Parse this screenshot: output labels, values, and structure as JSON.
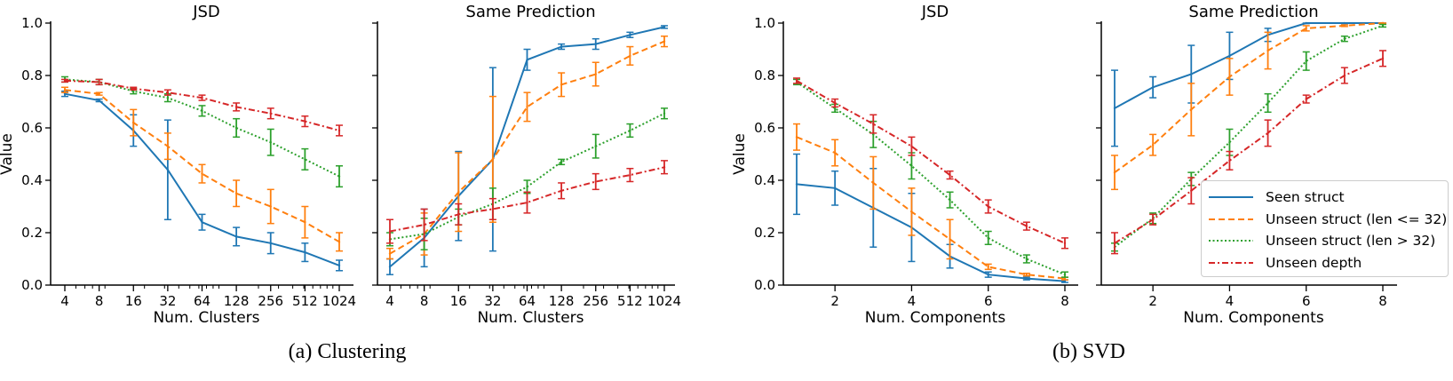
{
  "captions": {
    "a": "(a) Clustering",
    "b": "(b) SVD"
  },
  "colors": {
    "seen": "#1f77b4",
    "unseen_le": "#ff7f0e",
    "unseen_gt": "#2ca02c",
    "depth": "#d62728"
  },
  "legend": [
    {
      "label": "Seen struct",
      "color": "#1f77b4",
      "style": "solid"
    },
    {
      "label": "Unseen struct (len <= 32)",
      "color": "#ff7f0e",
      "style": "dashed"
    },
    {
      "label": "Unseen struct (len > 32)",
      "color": "#2ca02c",
      "style": "dotted"
    },
    {
      "label": "Unseen depth",
      "color": "#d62728",
      "style": "dashdot"
    }
  ],
  "chart_data": [
    {
      "type": "line",
      "title": "JSD",
      "xlabel": "Num. Clusters",
      "ylabel": "Value",
      "xscale": "log2",
      "ylim": [
        0,
        1
      ],
      "x": [
        4,
        8,
        16,
        32,
        64,
        128,
        256,
        512,
        1024
      ],
      "xticks": [
        "4",
        "8",
        "16",
        "32",
        "64",
        "128",
        "256",
        "512",
        "1024"
      ],
      "yticks": [
        "0.0",
        "0.2",
        "0.4",
        "0.6",
        "0.8",
        "1.0"
      ],
      "series": [
        {
          "name": "Seen struct",
          "style": "solid",
          "color": "#1f77b4",
          "values": [
            0.73,
            0.705,
            0.59,
            0.44,
            0.24,
            0.185,
            0.16,
            0.125,
            0.075
          ],
          "errors": [
            0.01,
            0.005,
            0.06,
            0.19,
            0.03,
            0.035,
            0.04,
            0.035,
            0.02
          ]
        },
        {
          "name": "Unseen struct (len <= 32)",
          "style": "dashed",
          "color": "#ff7f0e",
          "values": [
            0.745,
            0.73,
            0.62,
            0.53,
            0.425,
            0.35,
            0.3,
            0.24,
            0.165
          ],
          "errors": [
            0.01,
            0.005,
            0.05,
            0.05,
            0.035,
            0.05,
            0.065,
            0.06,
            0.035
          ]
        },
        {
          "name": "Unseen struct (len > 32)",
          "style": "dotted",
          "color": "#2ca02c",
          "values": [
            0.785,
            0.775,
            0.74,
            0.715,
            0.665,
            0.6,
            0.545,
            0.48,
            0.415
          ],
          "errors": [
            0.01,
            0.01,
            0.01,
            0.015,
            0.02,
            0.035,
            0.05,
            0.04,
            0.04
          ]
        },
        {
          "name": "Unseen depth",
          "style": "dashdot",
          "color": "#d62728",
          "values": [
            0.78,
            0.775,
            0.75,
            0.735,
            0.715,
            0.68,
            0.655,
            0.625,
            0.59
          ],
          "errors": [
            0.005,
            0.01,
            0.005,
            0.01,
            0.01,
            0.015,
            0.02,
            0.02,
            0.02
          ]
        }
      ]
    },
    {
      "type": "line",
      "title": "Same Prediction",
      "xlabel": "Num. Clusters",
      "ylabel": "",
      "xscale": "log2",
      "ylim": [
        0,
        1
      ],
      "x": [
        4,
        8,
        16,
        32,
        64,
        128,
        256,
        512,
        1024
      ],
      "xticks": [
        "4",
        "8",
        "16",
        "32",
        "64",
        "128",
        "256",
        "512",
        "1024"
      ],
      "yticks": [
        "",
        "",
        "",
        "",
        "",
        ""
      ],
      "series": [
        {
          "name": "Seen struct",
          "style": "solid",
          "color": "#1f77b4",
          "values": [
            0.07,
            0.18,
            0.34,
            0.48,
            0.86,
            0.91,
            0.92,
            0.955,
            0.985
          ],
          "errors": [
            0.03,
            0.11,
            0.17,
            0.35,
            0.04,
            0.01,
            0.02,
            0.01,
            0.005
          ]
        },
        {
          "name": "Unseen struct (len <= 32)",
          "style": "dashed",
          "color": "#ff7f0e",
          "values": [
            0.12,
            0.195,
            0.355,
            0.48,
            0.68,
            0.765,
            0.805,
            0.875,
            0.93
          ],
          "errors": [
            0.02,
            0.08,
            0.15,
            0.24,
            0.055,
            0.045,
            0.045,
            0.035,
            0.02
          ]
        },
        {
          "name": "Unseen struct (len > 32)",
          "style": "dotted",
          "color": "#2ca02c",
          "values": [
            0.175,
            0.195,
            0.26,
            0.31,
            0.375,
            0.47,
            0.53,
            0.59,
            0.655
          ],
          "errors": [
            0.025,
            0.06,
            0.03,
            0.06,
            0.025,
            0.01,
            0.045,
            0.025,
            0.02
          ]
        },
        {
          "name": "Unseen depth",
          "style": "dashdot",
          "color": "#d62728",
          "values": [
            0.205,
            0.23,
            0.27,
            0.29,
            0.315,
            0.36,
            0.395,
            0.42,
            0.45
          ],
          "errors": [
            0.045,
            0.06,
            0.04,
            0.04,
            0.04,
            0.03,
            0.03,
            0.025,
            0.025
          ]
        }
      ]
    },
    {
      "type": "line",
      "title": "JSD",
      "xlabel": "Num. Components",
      "ylabel": "Value",
      "xscale": "linear",
      "ylim": [
        0,
        1
      ],
      "xlim": [
        1,
        8
      ],
      "x": [
        1,
        2,
        3,
        4,
        5,
        6,
        7,
        8
      ],
      "xtick_values": [
        2,
        4,
        6,
        8
      ],
      "xticks": [
        "2",
        "4",
        "6",
        "8"
      ],
      "yticks": [
        "0.0",
        "0.2",
        "0.4",
        "0.6",
        "0.8",
        "1.0"
      ],
      "series": [
        {
          "name": "Seen struct",
          "style": "solid",
          "color": "#1f77b4",
          "values": [
            0.385,
            0.37,
            0.295,
            0.22,
            0.11,
            0.04,
            0.025,
            0.015
          ],
          "errors": [
            0.115,
            0.065,
            0.15,
            0.13,
            0.045,
            0.01,
            0.005,
            0.005
          ]
        },
        {
          "name": "Unseen struct (len <= 32)",
          "style": "dashed",
          "color": "#ff7f0e",
          "values": [
            0.565,
            0.505,
            0.39,
            0.28,
            0.175,
            0.07,
            0.04,
            0.025
          ],
          "errors": [
            0.05,
            0.05,
            0.1,
            0.09,
            0.075,
            0.01,
            0.005,
            0.005
          ]
        },
        {
          "name": "Unseen struct (len > 32)",
          "style": "dotted",
          "color": "#2ca02c",
          "values": [
            0.775,
            0.675,
            0.575,
            0.455,
            0.325,
            0.18,
            0.1,
            0.04
          ],
          "errors": [
            0.01,
            0.015,
            0.05,
            0.05,
            0.03,
            0.025,
            0.015,
            0.01
          ]
        },
        {
          "name": "Unseen depth",
          "style": "dashdot",
          "color": "#d62728",
          "values": [
            0.78,
            0.695,
            0.615,
            0.53,
            0.42,
            0.3,
            0.225,
            0.16
          ],
          "errors": [
            0.01,
            0.015,
            0.035,
            0.035,
            0.015,
            0.025,
            0.015,
            0.02
          ]
        }
      ]
    },
    {
      "type": "line",
      "title": "Same Prediction",
      "xlabel": "Num. Components",
      "ylabel": "",
      "xscale": "linear",
      "ylim": [
        0,
        1
      ],
      "xlim": [
        1,
        8
      ],
      "x": [
        1,
        2,
        3,
        4,
        5,
        6,
        7,
        8
      ],
      "xtick_values": [
        2,
        4,
        6,
        8
      ],
      "xticks": [
        "2",
        "4",
        "6",
        "8"
      ],
      "yticks": [
        "",
        "",
        "",
        "",
        "",
        ""
      ],
      "legend": "lower-right",
      "series": [
        {
          "name": "Seen struct",
          "style": "solid",
          "color": "#1f77b4",
          "values": [
            0.675,
            0.755,
            0.805,
            0.875,
            0.955,
            1.0,
            1.0,
            1.0
          ],
          "errors": [
            0.145,
            0.04,
            0.11,
            0.09,
            0.025,
            0.002,
            0.002,
            0.002
          ]
        },
        {
          "name": "Unseen struct (len <= 32)",
          "style": "dashed",
          "color": "#ff7f0e",
          "values": [
            0.43,
            0.535,
            0.67,
            0.795,
            0.895,
            0.98,
            0.99,
            1.0
          ],
          "errors": [
            0.065,
            0.04,
            0.1,
            0.07,
            0.07,
            0.01,
            0.003,
            0.002
          ]
        },
        {
          "name": "Unseen struct (len > 32)",
          "style": "dotted",
          "color": "#2ca02c",
          "values": [
            0.145,
            0.255,
            0.405,
            0.545,
            0.695,
            0.855,
            0.94,
            0.99
          ],
          "errors": [
            0.015,
            0.02,
            0.025,
            0.05,
            0.035,
            0.035,
            0.01,
            0.005
          ]
        },
        {
          "name": "Unseen depth",
          "style": "dashdot",
          "color": "#d62728",
          "values": [
            0.16,
            0.25,
            0.36,
            0.475,
            0.58,
            0.71,
            0.8,
            0.865
          ],
          "errors": [
            0.04,
            0.02,
            0.05,
            0.035,
            0.05,
            0.015,
            0.03,
            0.03
          ]
        }
      ]
    }
  ]
}
